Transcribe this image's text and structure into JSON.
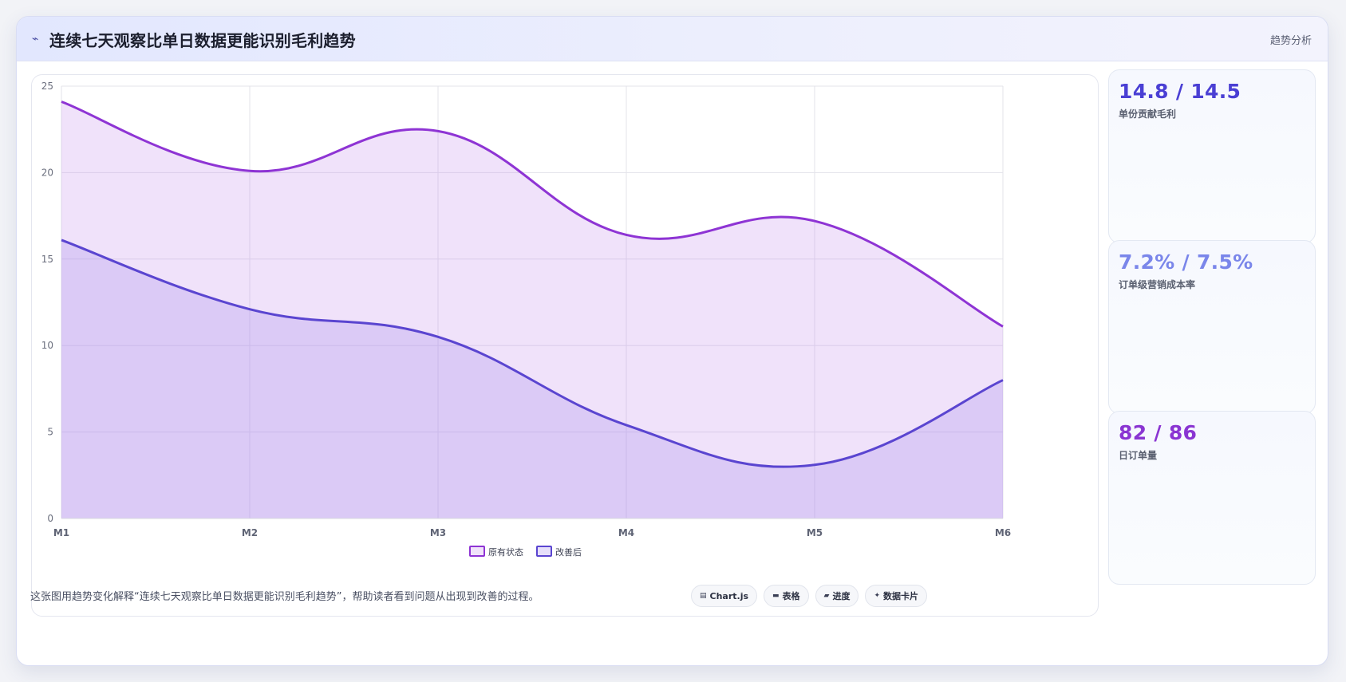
{
  "header": {
    "icon": "trend-line-icon",
    "icon_glyph": "⌁",
    "title": "连续七天观察比单日数据更能识别毛利趋势",
    "tag": "趋势分析"
  },
  "chart_data": {
    "type": "area",
    "categories": [
      "M1",
      "M2",
      "M3",
      "M4",
      "M5",
      "M6"
    ],
    "series": [
      {
        "name": "原有状态",
        "values": [
          24.1,
          20.1,
          22.4,
          16.4,
          17.2,
          11.1
        ],
        "color": "#8e34d4",
        "fill": "rgba(191,134,235,0.24)"
      },
      {
        "name": "改善后",
        "values": [
          16.1,
          12.1,
          10.5,
          5.4,
          3.1,
          8.0
        ],
        "color": "#5a45d0",
        "fill": "rgba(166,140,236,0.28)"
      }
    ],
    "ylim": [
      0,
      25
    ],
    "yticks": [
      0,
      5,
      10,
      15,
      20,
      25
    ],
    "grid": true,
    "legend": "bottom-center"
  },
  "kpis": [
    {
      "value": "14.8 / 14.5",
      "label": "单份贡献毛利",
      "color": "#4a3fd4"
    },
    {
      "value": "7.2% / 7.5%",
      "label": "订单级营销成本率",
      "color": "#7a86ea"
    },
    {
      "value": "82 / 86",
      "label": "日订单量",
      "color": "#8a35d2"
    }
  ],
  "footer": {
    "note": "这张图用趋势变化解释“连续七天观察比单日数据更能识别毛利趋势”，帮助读者看到问题从出现到改善的过程。",
    "chips": [
      {
        "icon": "chart-icon",
        "glyph": "▤",
        "label": "Chart.js"
      },
      {
        "icon": "table-icon",
        "glyph": "▬",
        "label": "表格"
      },
      {
        "icon": "progress-icon",
        "glyph": "▰",
        "label": "进度"
      },
      {
        "icon": "sparkle-icon",
        "glyph": "✦",
        "label": "数据卡片"
      }
    ]
  }
}
